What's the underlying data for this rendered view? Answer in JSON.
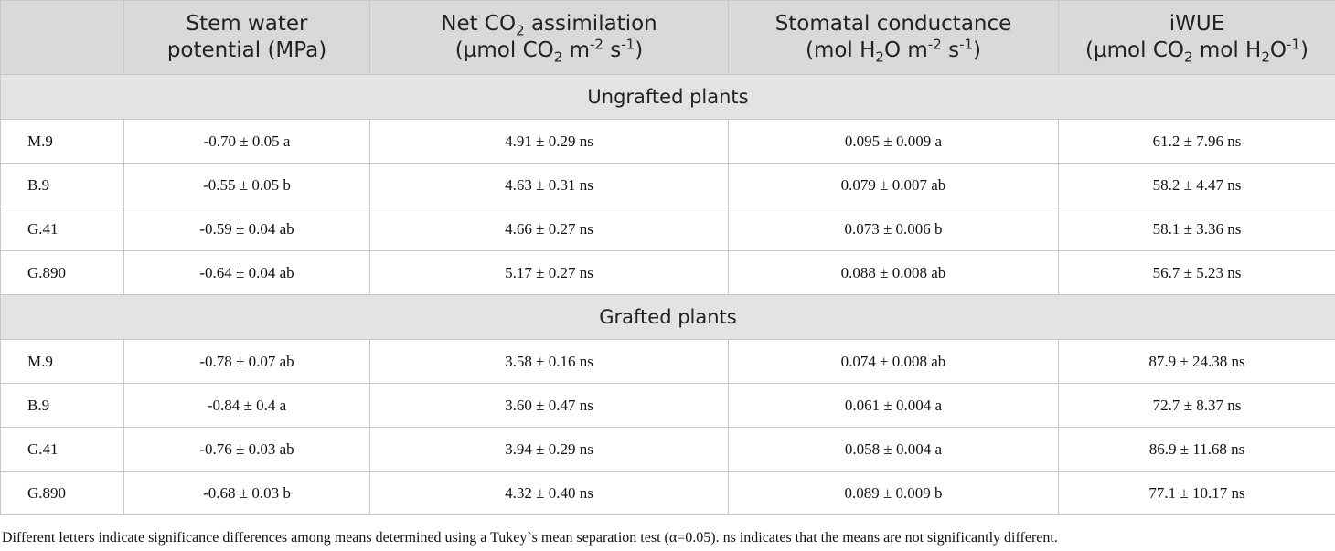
{
  "table": {
    "header": [
      [
        [
          "Stem water"
        ],
        [
          "potential (MPa)"
        ]
      ],
      [
        [
          "Net CO",
          {
            "sub": "2"
          },
          " assimilation"
        ],
        [
          "(µmol CO",
          {
            "sub": "2"
          },
          " m",
          {
            "sup": "-2"
          },
          " s",
          {
            "sup": "-1"
          },
          ")"
        ]
      ],
      [
        [
          "Stomatal conductance"
        ],
        [
          "(mol H",
          {
            "sub": "2"
          },
          "O m",
          {
            "sup": "-2"
          },
          " s",
          {
            "sup": "-1"
          },
          ")"
        ]
      ],
      [
        [
          "iWUE"
        ],
        [
          "(µmol CO",
          {
            "sub": "2"
          },
          " mol H",
          {
            "sub": "2"
          },
          "O",
          {
            "sup": "-1"
          },
          ")"
        ]
      ]
    ],
    "groups": [
      {
        "title": "Ungrafted plants",
        "rows": [
          [
            "M.9",
            "-0.70 ± 0.05 a",
            "4.91 ± 0.29 ns",
            "0.095 ± 0.009 a",
            "61.2 ± 7.96 ns"
          ],
          [
            "B.9",
            "-0.55 ± 0.05 b",
            "4.63 ± 0.31 ns",
            "0.079 ± 0.007 ab",
            "58.2 ± 4.47 ns"
          ],
          [
            "G.41",
            "-0.59 ± 0.04 ab",
            "4.66 ± 0.27 ns",
            "0.073 ± 0.006 b",
            "58.1 ± 3.36 ns"
          ],
          [
            "G.890",
            "-0.64 ± 0.04 ab",
            "5.17 ± 0.27 ns",
            "0.088 ± 0.008 ab",
            "56.7 ± 5.23 ns"
          ]
        ]
      },
      {
        "title": "Grafted plants",
        "rows": [
          [
            "M.9",
            "-0.78 ± 0.07 ab",
            "3.58 ± 0.16 ns",
            "0.074 ± 0.008 ab",
            "87.9 ± 24.38 ns"
          ],
          [
            "B.9",
            "-0.84 ± 0.4 a",
            "3.60 ± 0.47 ns",
            "0.061 ± 0.004 a",
            "72.7 ± 8.37 ns"
          ],
          [
            "G.41",
            "-0.76 ± 0.03 ab",
            "3.94 ± 0.29 ns",
            "0.058 ± 0.004 a",
            "86.9 ± 11.68 ns"
          ],
          [
            "G.890",
            "-0.68 ± 0.03 b",
            "4.32 ± 0.40 ns",
            "0.089 ± 0.009 b",
            "77.1 ± 10.17 ns"
          ]
        ]
      }
    ]
  },
  "footnote": "Different letters indicate significance differences among means determined using a Tukey`s mean separation test (α=0.05). ns indicates that the means are not significantly different."
}
